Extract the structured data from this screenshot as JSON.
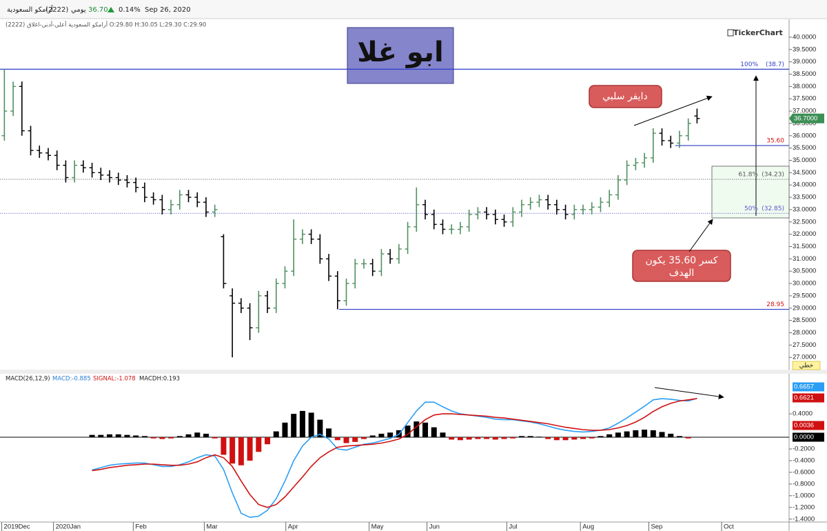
{
  "header": {
    "symbol": "أرامكو السعودية",
    "code": "(2222)",
    "period": "يومي",
    "price": "36.70",
    "change": "0.14%",
    "date": "Sep 26, 2020"
  },
  "logo": "TickerChart",
  "title": "ابو غلا",
  "notes": {
    "divergence": "دايفر سلبي",
    "target_line1": "كسر 35.60 يكون",
    "target_line2": "الهدف"
  },
  "chart_data": [
    {
      "type": "ohlc",
      "legend": "(2222) أرامكو السعودية أعلى-أدنى-اغلاق O:29.80 H:30.05 L:29.30 C:29.90",
      "chart_style": "خطي",
      "up_color": "#4f8f5f",
      "down_color": "#000000",
      "xlim": [
        -0.5,
        89.5
      ],
      "ylim": [
        26.53,
        40.67
      ],
      "yticks": [
        {
          "value": 27,
          "label": "27.0000"
        },
        {
          "value": 27.5,
          "label": "27.5000"
        },
        {
          "value": 28,
          "label": "28.0000"
        },
        {
          "value": 28.5,
          "label": "28.5000"
        },
        {
          "value": 29,
          "label": "29.0000"
        },
        {
          "value": 29.5,
          "label": "29.5000"
        },
        {
          "value": 30,
          "label": "30.0000"
        },
        {
          "value": 30.5,
          "label": "30.5000"
        },
        {
          "value": 31,
          "label": "31.0000"
        },
        {
          "value": 31.5,
          "label": "31.5000"
        },
        {
          "value": 32,
          "label": "32.0000"
        },
        {
          "value": 32.5,
          "label": "32.5000"
        },
        {
          "value": 33,
          "label": "33.0000"
        },
        {
          "value": 33.5,
          "label": "33.5000"
        },
        {
          "value": 34,
          "label": "34.0000"
        },
        {
          "value": 34.5,
          "label": "34.5000"
        },
        {
          "value": 35,
          "label": "35.0000"
        },
        {
          "value": 35.5,
          "label": "35.5000"
        },
        {
          "value": 36,
          "label": "36.0000"
        },
        {
          "value": 36.5,
          "label": "36.5000"
        },
        {
          "value": 37,
          "label": "37.0000"
        },
        {
          "value": 37.5,
          "label": "37.5000"
        },
        {
          "value": 38,
          "label": "38.0000"
        },
        {
          "value": 38.5,
          "label": "38.5000"
        },
        {
          "value": 39,
          "label": "39.0000"
        },
        {
          "value": 39.5,
          "label": "39.5000"
        },
        {
          "value": 40,
          "label": "40.0000"
        }
      ],
      "open": [
        36.0,
        37.0,
        38.0,
        36.2,
        35.4,
        35.3,
        35.2,
        34.8,
        34.3,
        34.8,
        34.7,
        34.5,
        34.4,
        34.3,
        34.2,
        34.1,
        33.9,
        33.5,
        33.4,
        33.0,
        33.2,
        33.6,
        33.5,
        33.3,
        32.9,
        31.9,
        29.5,
        29.2,
        29.0,
        28.2,
        29.5,
        29.0,
        30.0,
        30.5,
        31.8,
        32.0,
        31.8,
        31.0,
        30.3,
        29.3,
        30.0,
        30.8,
        30.8,
        30.5,
        31.2,
        31.0,
        31.4,
        32.3,
        33.2,
        32.8,
        32.4,
        32.2,
        32.2,
        32.3,
        32.8,
        32.9,
        32.8,
        32.6,
        32.5,
        32.9,
        33.2,
        33.3,
        33.4,
        33.2,
        33.0,
        32.8,
        33.0,
        33.0,
        33.1,
        33.3,
        33.6,
        34.2,
        34.8,
        34.9,
        35.1,
        36.1,
        35.8,
        35.7,
        36.0,
        36.8
      ],
      "high": [
        38.7,
        38.2,
        38.2,
        36.4,
        35.6,
        35.5,
        35.4,
        35.0,
        35.0,
        35.0,
        34.9,
        34.7,
        34.6,
        34.5,
        34.4,
        34.3,
        34.1,
        33.7,
        33.6,
        33.4,
        33.8,
        33.8,
        33.7,
        33.5,
        33.2,
        32.0,
        29.8,
        29.4,
        29.2,
        29.7,
        29.7,
        30.2,
        30.7,
        32.6,
        32.2,
        32.2,
        32.0,
        31.2,
        30.5,
        30.2,
        31.0,
        31.0,
        31.0,
        31.4,
        31.4,
        31.6,
        32.5,
        33.9,
        33.4,
        33.0,
        32.6,
        32.4,
        32.5,
        33.0,
        33.1,
        33.1,
        33.0,
        32.8,
        33.1,
        33.4,
        33.5,
        33.6,
        33.6,
        33.4,
        33.2,
        33.2,
        33.2,
        33.3,
        33.5,
        33.8,
        34.4,
        35.0,
        35.1,
        35.3,
        36.3,
        36.3,
        36.0,
        36.2,
        36.7,
        37.1
      ],
      "low": [
        35.8,
        36.8,
        36.0,
        35.2,
        35.1,
        35.0,
        34.6,
        34.1,
        34.1,
        34.5,
        34.3,
        34.2,
        34.1,
        34.0,
        33.9,
        33.7,
        33.3,
        33.2,
        32.8,
        32.8,
        33.0,
        33.3,
        33.1,
        32.7,
        32.7,
        29.8,
        27.0,
        28.8,
        27.7,
        28.0,
        28.8,
        28.8,
        29.8,
        30.3,
        31.6,
        31.6,
        30.8,
        30.1,
        28.95,
        29.1,
        29.8,
        30.6,
        30.3,
        30.3,
        30.8,
        30.8,
        31.2,
        32.1,
        32.6,
        32.2,
        32.0,
        32.0,
        32.0,
        32.1,
        32.6,
        32.6,
        32.4,
        32.3,
        32.3,
        32.7,
        33.0,
        33.1,
        33.0,
        32.8,
        32.6,
        32.6,
        32.8,
        32.8,
        32.9,
        33.1,
        33.4,
        34.0,
        34.6,
        34.7,
        34.9,
        35.6,
        35.5,
        35.5,
        35.8,
        36.5
      ],
      "close": [
        37.0,
        38.0,
        36.2,
        35.4,
        35.3,
        35.2,
        34.8,
        34.3,
        34.8,
        34.7,
        34.5,
        34.4,
        34.3,
        34.2,
        34.1,
        33.9,
        33.5,
        33.4,
        33.0,
        33.2,
        33.6,
        33.5,
        33.3,
        32.9,
        33.0,
        30.0,
        29.2,
        29.0,
        28.2,
        29.5,
        29.0,
        30.0,
        30.5,
        31.8,
        32.0,
        31.8,
        31.0,
        30.3,
        29.3,
        30.0,
        30.8,
        30.8,
        30.5,
        31.2,
        31.0,
        31.4,
        32.3,
        33.2,
        32.8,
        32.4,
        32.2,
        32.2,
        32.3,
        32.8,
        32.9,
        32.8,
        32.6,
        32.5,
        32.9,
        33.2,
        33.3,
        33.4,
        33.2,
        33.0,
        32.8,
        33.0,
        33.0,
        33.1,
        33.3,
        33.6,
        34.2,
        34.8,
        34.9,
        35.1,
        36.1,
        35.8,
        35.7,
        36.0,
        36.5,
        36.7
      ],
      "last_label": {
        "value": 36.7,
        "label": "36.7000"
      },
      "levels": [
        {
          "value": 38.7,
          "label": "100%",
          "value_label": "(38.7)",
          "color": "#2a3cc8",
          "style": "solid"
        },
        {
          "value": 34.23,
          "label": "61.8%",
          "value_label": "(34.23)",
          "color": "#555555",
          "style": "dotted"
        },
        {
          "value": 32.85,
          "label": "50%",
          "value_label": "(32.85)",
          "color": "#5555cc",
          "style": "dotted"
        },
        {
          "value": 35.6,
          "value_label": "35.60",
          "color": "#2a3cc8",
          "style": "solid"
        },
        {
          "value": 28.95,
          "value_label": "28.95",
          "color": "#2a3cc8",
          "style": "solid"
        }
      ]
    },
    {
      "type": "macd",
      "legend": [
        "MACD(26,12,9)",
        "MACD:-0.885",
        "SIGNAL:-1.078",
        "MACDH:0.193"
      ],
      "xlim": [
        -0.5,
        89.5
      ],
      "ylim": [
        -1.45,
        1.05
      ],
      "yticks": [
        {
          "value": 0.4,
          "label": "0.4000"
        },
        {
          "value": -0.2,
          "label": "-0.2000"
        },
        {
          "value": -0.4,
          "label": "-0.4000"
        },
        {
          "value": -0.6,
          "label": "-0.6000"
        },
        {
          "value": -0.8,
          "label": "-0.8000"
        },
        {
          "value": -1,
          "label": "-1.0000"
        },
        {
          "value": -1.2,
          "label": "-1.2000"
        },
        {
          "value": -1.4,
          "label": "-1.4000"
        }
      ],
      "xticks": [
        {
          "value": -0.3,
          "label": "2019Dec"
        },
        {
          "value": 5.6,
          "label": "2020Jan"
        },
        {
          "value": 14.7,
          "label": "Feb"
        },
        {
          "value": 22.8,
          "label": "Mar"
        },
        {
          "value": 32.1,
          "label": "Apr"
        },
        {
          "value": 41.6,
          "label": "May"
        },
        {
          "value": 48.2,
          "label": "Jun"
        },
        {
          "value": 57.3,
          "label": "Jul"
        },
        {
          "value": 65.7,
          "label": "Aug"
        },
        {
          "value": 73.5,
          "label": "Sep"
        },
        {
          "value": 81.8,
          "label": "Oct"
        }
      ],
      "series": [
        {
          "color": "#2a9df4",
          "values": [
            null,
            null,
            null,
            null,
            null,
            null,
            null,
            null,
            null,
            null,
            -0.56,
            -0.52,
            -0.48,
            -0.46,
            -0.45,
            -0.44,
            -0.44,
            -0.47,
            -0.5,
            -0.5,
            -0.47,
            -0.42,
            -0.35,
            -0.3,
            -0.32,
            -0.55,
            -0.95,
            -1.3,
            -1.37,
            -1.35,
            -1.25,
            -1.05,
            -0.75,
            -0.4,
            -0.15,
            0.0,
            0.05,
            -0.03,
            -0.2,
            -0.22,
            -0.17,
            -0.12,
            -0.1,
            -0.06,
            -0.02,
            0.05,
            0.25,
            0.45,
            0.6,
            0.6,
            0.52,
            0.45,
            0.4,
            0.38,
            0.36,
            0.34,
            0.31,
            0.3,
            0.3,
            0.28,
            0.26,
            0.23,
            0.19,
            0.15,
            0.12,
            0.1,
            0.09,
            0.1,
            0.12,
            0.16,
            0.24,
            0.33,
            0.43,
            0.53,
            0.64,
            0.66,
            0.65,
            0.63,
            0.62,
            0.6657
          ]
        },
        {
          "color": "#d01010",
          "values": [
            null,
            null,
            null,
            null,
            null,
            null,
            null,
            null,
            null,
            null,
            -0.57,
            -0.55,
            -0.52,
            -0.5,
            -0.48,
            -0.47,
            -0.46,
            -0.46,
            -0.47,
            -0.48,
            -0.48,
            -0.46,
            -0.42,
            -0.35,
            -0.3,
            -0.35,
            -0.5,
            -0.75,
            -0.98,
            -1.15,
            -1.2,
            -1.15,
            -1.02,
            -0.85,
            -0.68,
            -0.5,
            -0.35,
            -0.25,
            -0.17,
            -0.15,
            -0.14,
            -0.13,
            -0.12,
            -0.1,
            -0.07,
            -0.03,
            0.05,
            0.18,
            0.3,
            0.38,
            0.4,
            0.4,
            0.39,
            0.38,
            0.37,
            0.36,
            0.34,
            0.33,
            0.31,
            0.29,
            0.27,
            0.25,
            0.23,
            0.2,
            0.17,
            0.15,
            0.13,
            0.12,
            0.12,
            0.13,
            0.16,
            0.2,
            0.26,
            0.34,
            0.44,
            0.52,
            0.58,
            0.62,
            0.64,
            0.6621
          ]
        }
      ],
      "histogram": {
        "up_color": "#000000",
        "down_color": "#d01010",
        "values": [
          null,
          null,
          null,
          null,
          null,
          null,
          null,
          null,
          null,
          null,
          0.04,
          0.04,
          0.05,
          0.05,
          0.04,
          0.03,
          0.02,
          -0.02,
          -0.03,
          -0.02,
          0.02,
          0.05,
          0.08,
          0.06,
          -0.02,
          -0.3,
          -0.45,
          -0.48,
          -0.4,
          -0.25,
          -0.12,
          0.1,
          0.25,
          0.4,
          0.45,
          0.42,
          0.3,
          0.15,
          -0.05,
          -0.1,
          -0.08,
          -0.03,
          0.03,
          0.06,
          0.08,
          0.12,
          0.2,
          0.27,
          0.25,
          0.17,
          0.08,
          -0.04,
          -0.05,
          -0.04,
          -0.03,
          -0.03,
          -0.04,
          -0.03,
          -0.02,
          0.02,
          0.02,
          0.01,
          -0.03,
          -0.05,
          -0.05,
          -0.04,
          -0.03,
          -0.02,
          0.02,
          0.05,
          0.08,
          0.1,
          0.12,
          0.13,
          0.12,
          0.09,
          0.06,
          0.02,
          -0.02,
          0.0036
        ]
      },
      "last_labels": [
        {
          "value": 0.6657,
          "label": "0.6657",
          "color": "#2a9df4"
        },
        {
          "value": 0.6621,
          "label": "0.6621",
          "color": "#d01010"
        },
        {
          "value": 0.0036,
          "label": "0.0036",
          "color": "#d01010"
        },
        {
          "value": 0,
          "label": "0.0000",
          "color": "#000000"
        }
      ]
    }
  ]
}
